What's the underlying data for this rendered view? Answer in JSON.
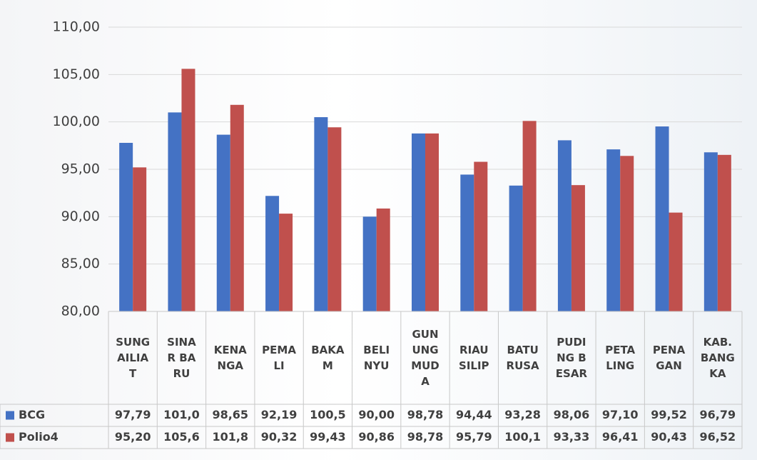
{
  "chart_data": {
    "type": "bar",
    "categories": [
      "SUNGAILIAT",
      "SINAR BARU",
      "KENANGA",
      "PEMALI",
      "BAKAM",
      "BELINYU",
      "GUNUNG MUDA",
      "RIAU SILIP",
      "BATURUSA",
      "PUDING BESAR",
      "PETALING",
      "PENAGAN",
      "KAB. BANGKA"
    ],
    "series": [
      {
        "name": "BCG",
        "color": "#4472c4",
        "values": [
          97.79,
          101.0,
          98.65,
          92.19,
          100.5,
          90.0,
          98.78,
          94.44,
          93.28,
          98.06,
          97.1,
          99.52,
          96.79
        ],
        "value_labels": [
          "97,79",
          "101,0",
          "98,65",
          "92,19",
          "100,5",
          "90,00",
          "98,78",
          "94,44",
          "93,28",
          "98,06",
          "97,10",
          "99,52",
          "96,79"
        ]
      },
      {
        "name": "Polio4",
        "color": "#c0504d",
        "values": [
          95.2,
          105.6,
          101.8,
          90.32,
          99.43,
          90.86,
          98.78,
          95.79,
          100.1,
          93.33,
          96.41,
          90.43,
          96.52
        ],
        "value_labels": [
          "95,20",
          "105,6",
          "101,8",
          "90,32",
          "99,43",
          "90,86",
          "98,78",
          "95,79",
          "100,1",
          "93,33",
          "96,41",
          "90,43",
          "96,52"
        ]
      }
    ],
    "ylim": [
      80,
      110
    ],
    "yticks": [
      {
        "value": 80,
        "label": "80,00"
      },
      {
        "value": 85,
        "label": "85,00"
      },
      {
        "value": 90,
        "label": "90,00"
      },
      {
        "value": 95,
        "label": "95,00"
      },
      {
        "value": 100,
        "label": "100,00"
      },
      {
        "value": 105,
        "label": "105,00"
      },
      {
        "value": 110,
        "label": "110,00"
      }
    ],
    "grid": true
  }
}
